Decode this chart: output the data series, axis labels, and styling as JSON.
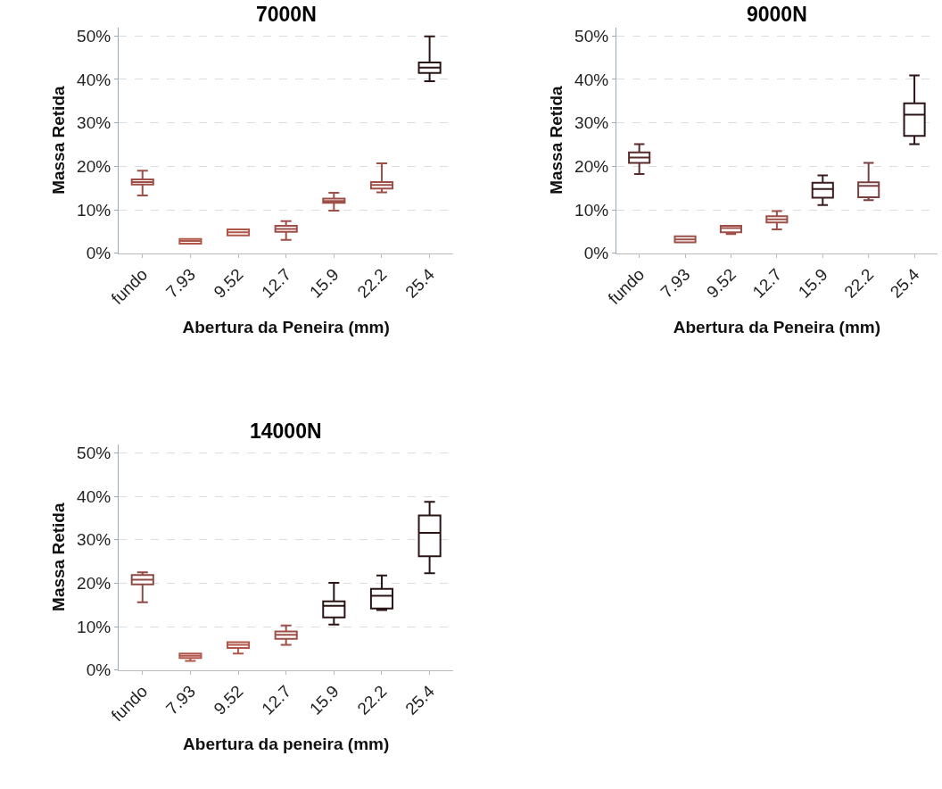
{
  "chart_data": [
    {
      "type": "box",
      "title": "7000N",
      "xlabel": "Abertura da Peneira (mm)",
      "ylabel": "Massa Retida",
      "categories": [
        "fundo",
        "7.93",
        "9.52",
        "12.7",
        "15.9",
        "22.2",
        "25.4"
      ],
      "colors": [
        "#9e4f47",
        "#b0574a",
        "#b0574a",
        "#9e4f47",
        "#9e4f47",
        "#9e4f47",
        "#2a1416"
      ],
      "boxes": [
        {
          "low": 13.3,
          "q1": 15.8,
          "median": 16.4,
          "q3": 17.0,
          "high": 19.0
        },
        {
          "low": 2.2,
          "q1": 2.2,
          "median": 2.8,
          "q3": 3.3,
          "high": 3.3
        },
        {
          "low": 4.1,
          "q1": 4.1,
          "median": 4.8,
          "q3": 5.5,
          "high": 5.5
        },
        {
          "low": 3.1,
          "q1": 4.9,
          "median": 5.6,
          "q3": 6.3,
          "high": 7.4
        },
        {
          "low": 9.8,
          "q1": 11.6,
          "median": 12.0,
          "q3": 12.6,
          "high": 13.9
        },
        {
          "low": 14.0,
          "q1": 14.9,
          "median": 15.7,
          "q3": 16.4,
          "high": 20.7
        },
        {
          "low": 39.6,
          "q1": 41.5,
          "median": 42.7,
          "q3": 43.9,
          "high": 49.9
        }
      ],
      "ylim": [
        0,
        52
      ],
      "yticks": [
        {
          "value": 0,
          "label": "0%"
        },
        {
          "value": 10,
          "label": "10%"
        },
        {
          "value": 20,
          "label": "20%"
        },
        {
          "value": 30,
          "label": "30%"
        },
        {
          "value": 40,
          "label": "40%"
        },
        {
          "value": 50,
          "label": "50%"
        }
      ],
      "grid": "y"
    },
    {
      "type": "box",
      "title": "9000N",
      "xlabel": "Abertura da Peneira (mm)",
      "ylabel": "Massa Retida",
      "categories": [
        "fundo",
        "7.93",
        "9.52",
        "12.7",
        "15.9",
        "22.2",
        "25.4"
      ],
      "colors": [
        "#5a2a2a",
        "#9e4f47",
        "#9e4f47",
        "#9e4f47",
        "#3a1c1e",
        "#7a4040",
        "#2a1416"
      ],
      "boxes": [
        {
          "low": 18.2,
          "q1": 20.8,
          "median": 22.0,
          "q3": 23.2,
          "high": 25.1
        },
        {
          "low": 2.5,
          "q1": 2.5,
          "median": 3.2,
          "q3": 3.9,
          "high": 3.9
        },
        {
          "low": 4.4,
          "q1": 4.8,
          "median": 5.8,
          "q3": 6.3,
          "high": 6.3
        },
        {
          "low": 5.5,
          "q1": 7.1,
          "median": 7.8,
          "q3": 8.5,
          "high": 9.7
        },
        {
          "low": 11.1,
          "q1": 12.8,
          "median": 14.8,
          "q3": 16.2,
          "high": 17.9
        },
        {
          "low": 12.2,
          "q1": 12.9,
          "median": 15.5,
          "q3": 16.3,
          "high": 20.8
        },
        {
          "low": 25.1,
          "q1": 27.0,
          "median": 31.9,
          "q3": 34.5,
          "high": 40.9
        }
      ],
      "ylim": [
        0,
        52
      ],
      "yticks": [
        {
          "value": 0,
          "label": "0%"
        },
        {
          "value": 10,
          "label": "10%"
        },
        {
          "value": 20,
          "label": "20%"
        },
        {
          "value": 30,
          "label": "30%"
        },
        {
          "value": 40,
          "label": "40%"
        },
        {
          "value": 50,
          "label": "50%"
        }
      ],
      "grid": "y"
    },
    {
      "type": "box",
      "title": "14000N",
      "xlabel": "Abertura da peneira (mm)",
      "ylabel": "Massa Retida",
      "categories": [
        "fundo",
        "7.93",
        "9.52",
        "12.7",
        "15.9",
        "22.2",
        "25.4"
      ],
      "colors": [
        "#8e4a45",
        "#b0574a",
        "#b0574a",
        "#9e4f47",
        "#2a1416",
        "#2a1416",
        "#2a1416"
      ],
      "boxes": [
        {
          "low": 15.6,
          "q1": 19.7,
          "median": 20.8,
          "q3": 21.9,
          "high": 22.5
        },
        {
          "low": 2.1,
          "q1": 2.8,
          "median": 3.3,
          "q3": 3.8,
          "high": 3.8
        },
        {
          "low": 3.8,
          "q1": 5.1,
          "median": 5.8,
          "q3": 6.4,
          "high": 6.4
        },
        {
          "low": 5.8,
          "q1": 7.2,
          "median": 8.1,
          "q3": 8.9,
          "high": 10.3
        },
        {
          "low": 10.5,
          "q1": 12.1,
          "median": 14.8,
          "q3": 15.8,
          "high": 20.1
        },
        {
          "low": 13.8,
          "q1": 14.2,
          "median": 17.1,
          "q3": 18.7,
          "high": 21.8
        },
        {
          "low": 22.3,
          "q1": 26.2,
          "median": 31.6,
          "q3": 35.6,
          "high": 38.7
        }
      ],
      "ylim": [
        0,
        52
      ],
      "yticks": [
        {
          "value": 0,
          "label": "0%"
        },
        {
          "value": 10,
          "label": "10%"
        },
        {
          "value": 20,
          "label": "20%"
        },
        {
          "value": 30,
          "label": "30%"
        },
        {
          "value": 40,
          "label": "40%"
        },
        {
          "value": 50,
          "label": "50%"
        }
      ],
      "grid": "y"
    }
  ]
}
